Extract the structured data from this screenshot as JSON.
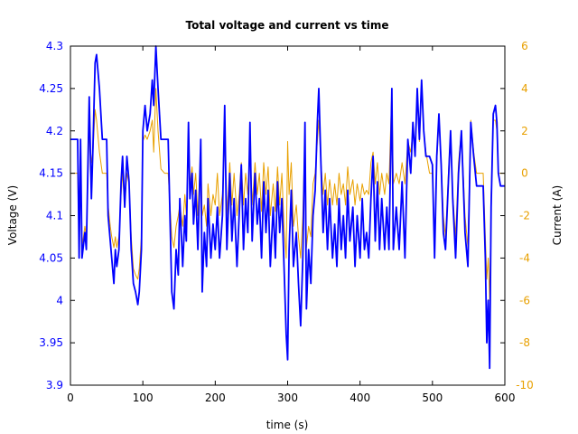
{
  "chart_data": {
    "type": "line",
    "title": "Total voltage and current vs time",
    "xlabel": "time (s)",
    "ylabel": "Voltage (V)",
    "y2label": "Current (A)",
    "xlim": [
      0,
      600
    ],
    "ylim": [
      3.9,
      4.3
    ],
    "y2lim": [
      -10,
      6
    ],
    "xticks": [
      0,
      100,
      200,
      300,
      400,
      500,
      600
    ],
    "yticks": [
      "3.9",
      "3.95",
      "4",
      "4.05",
      "4.1",
      "4.15",
      "4.2",
      "4.25",
      "4.3"
    ],
    "y2ticks": [
      "-10",
      "-8",
      "-6",
      "-4",
      "-2",
      "0",
      "2",
      "4",
      "6"
    ],
    "grid": false,
    "colors": {
      "voltage": "#0000ff",
      "current": "#e8a000",
      "axis": "#000000"
    },
    "x": [
      0,
      10,
      12,
      14,
      16,
      20,
      22,
      26,
      29,
      31,
      34,
      36,
      40,
      44,
      50,
      52,
      55,
      57,
      60,
      62,
      64,
      67,
      70,
      72,
      75,
      78,
      81,
      84,
      87,
      90,
      93,
      95,
      98,
      100,
      103,
      106,
      110,
      113,
      115,
      118,
      121,
      125,
      130,
      135,
      140,
      143,
      146,
      149,
      151,
      155,
      158,
      160,
      163,
      165,
      168,
      170,
      173,
      176,
      180,
      182,
      185,
      188,
      190,
      194,
      197,
      200,
      203,
      206,
      210,
      213,
      216,
      220,
      223,
      226,
      230,
      233,
      236,
      239,
      242,
      245,
      248,
      251,
      255,
      258,
      261,
      264,
      267,
      270,
      273,
      276,
      280,
      283,
      286,
      289,
      292,
      295,
      298,
      300,
      302,
      305,
      308,
      312,
      315,
      318,
      321,
      324,
      326,
      329,
      332,
      335,
      338,
      341,
      343,
      346,
      349,
      352,
      355,
      358,
      362,
      365,
      368,
      371,
      374,
      377,
      380,
      383,
      386,
      390,
      393,
      396,
      400,
      403,
      406,
      409,
      412,
      415,
      418,
      421,
      424,
      427,
      430,
      434,
      437,
      440,
      444,
      446,
      450,
      454,
      458,
      462,
      466,
      470,
      473,
      476,
      479,
      482,
      485,
      488,
      491,
      496,
      500,
      503,
      506,
      509,
      512,
      515,
      518,
      522,
      525,
      528,
      532,
      536,
      540,
      545,
      549,
      553,
      557,
      561,
      570,
      573,
      575,
      577,
      579,
      581,
      584,
      587,
      589,
      591,
      594,
      600
    ],
    "series": [
      {
        "name": "Voltage",
        "axis": "left",
        "values": [
          4.19,
          4.19,
          4.05,
          4.19,
          4.05,
          4.08,
          4.06,
          4.24,
          4.12,
          4.18,
          4.28,
          4.29,
          4.25,
          4.19,
          4.19,
          4.1,
          4.07,
          4.05,
          4.02,
          4.06,
          4.04,
          4.06,
          4.14,
          4.17,
          4.11,
          4.17,
          4.14,
          4.06,
          4.02,
          4.01,
          3.995,
          4.01,
          4.06,
          4.2,
          4.23,
          4.2,
          4.22,
          4.26,
          4.23,
          4.3,
          4.25,
          4.19,
          4.19,
          4.19,
          4.01,
          3.99,
          4.06,
          4.03,
          4.12,
          4.04,
          4.1,
          4.07,
          4.21,
          4.12,
          4.15,
          4.09,
          4.13,
          4.06,
          4.19,
          4.01,
          4.08,
          4.04,
          4.12,
          4.05,
          4.09,
          4.06,
          4.11,
          4.05,
          4.1,
          4.23,
          4.06,
          4.15,
          4.07,
          4.12,
          4.04,
          4.1,
          4.16,
          4.06,
          4.12,
          4.08,
          4.21,
          4.07,
          4.15,
          4.09,
          4.12,
          4.05,
          4.14,
          4.08,
          4.13,
          4.04,
          4.11,
          4.05,
          4.14,
          4.08,
          4.12,
          4.04,
          3.96,
          3.93,
          4.06,
          4.13,
          4.04,
          4.08,
          4.02,
          3.97,
          4.05,
          4.21,
          3.99,
          4.06,
          4.02,
          4.1,
          4.13,
          4.21,
          4.25,
          4.16,
          4.08,
          4.13,
          4.06,
          4.12,
          4.05,
          4.09,
          4.04,
          4.12,
          4.06,
          4.1,
          4.05,
          4.13,
          4.07,
          4.11,
          4.04,
          4.1,
          4.05,
          4.12,
          4.06,
          4.08,
          4.05,
          4.12,
          4.17,
          4.07,
          4.14,
          4.06,
          4.12,
          4.06,
          4.11,
          4.06,
          4.25,
          4.06,
          4.11,
          4.06,
          4.14,
          4.05,
          4.19,
          4.15,
          4.21,
          4.17,
          4.25,
          4.19,
          4.26,
          4.2,
          4.17,
          4.17,
          4.16,
          4.05,
          4.17,
          4.22,
          4.16,
          4.08,
          4.06,
          4.14,
          4.2,
          4.12,
          4.05,
          4.15,
          4.2,
          4.08,
          4.04,
          4.21,
          4.17,
          4.135,
          4.135,
          4.05,
          3.95,
          4.0,
          3.92,
          4.11,
          4.22,
          4.23,
          4.21,
          4.15,
          4.135,
          4.135
        ]
      },
      {
        "name": "Current",
        "axis": "right",
        "values": [
          0,
          0,
          -3.5,
          0,
          -3.5,
          -2.5,
          -3,
          2,
          0.5,
          1,
          3,
          2.5,
          1,
          0,
          0,
          -1.5,
          -2.5,
          -3,
          -3.5,
          -3,
          -3.5,
          -3,
          -1,
          0,
          -1.5,
          0,
          -0.5,
          -3,
          -4.5,
          -4.8,
          -5,
          -4.5,
          -3,
          1.5,
          1.8,
          1.6,
          2,
          2.5,
          1,
          4,
          2,
          0.2,
          0,
          0,
          -3,
          -3.5,
          -2.5,
          -2,
          -1.5,
          -2.5,
          -1,
          -2,
          1,
          -0.5,
          0.3,
          -1,
          0,
          -2,
          1,
          -2,
          -1.5,
          -2.5,
          -0.5,
          -2,
          -1,
          -1.5,
          0,
          -2,
          -1,
          1.5,
          -2,
          0.5,
          -1.5,
          0,
          -2,
          -1,
          0.5,
          -1.5,
          0,
          -1,
          1.5,
          -1.5,
          0.5,
          -1,
          0,
          -1.8,
          0.5,
          -1,
          0.3,
          -2,
          -0.5,
          -1.8,
          0.3,
          -1.5,
          0,
          -2.5,
          -4,
          1.5,
          -1,
          0.5,
          -2.5,
          -1.5,
          -3,
          -4,
          -2,
          2,
          -3.5,
          -2.5,
          -3,
          -0.5,
          0,
          1.5,
          2.5,
          0.5,
          -1,
          0,
          -1.5,
          -0.3,
          -1.5,
          -0.5,
          -1.5,
          0,
          -1,
          -0.5,
          -1.5,
          0.3,
          -1,
          -0.3,
          -1.5,
          -0.5,
          -1.3,
          -0.5,
          -1,
          -0.8,
          -1,
          0.5,
          1,
          -0.5,
          0.5,
          -1,
          0,
          -1,
          0,
          -0.5,
          4,
          -0.5,
          0,
          -0.5,
          0.5,
          -0.5,
          1.5,
          1,
          2,
          1.5,
          3.5,
          1.5,
          4,
          2,
          1,
          0,
          0,
          -3,
          0.5,
          2.5,
          0.5,
          -2,
          -3,
          0,
          2,
          -1,
          -3,
          0.5,
          2,
          -2,
          -3.5,
          2.5,
          1,
          0,
          0,
          -3,
          -5,
          -4,
          -6,
          -1,
          2.5,
          2.5,
          2,
          0,
          0,
          0
        ]
      }
    ]
  }
}
